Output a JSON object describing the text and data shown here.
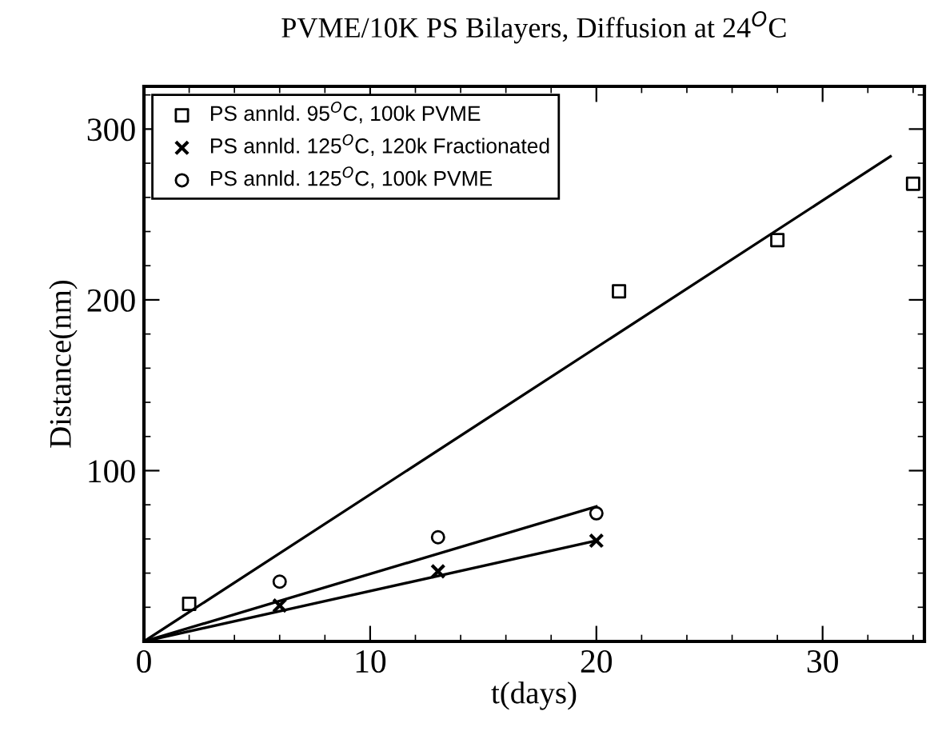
{
  "chart_data": {
    "type": "scatter",
    "title": "PVME/10K PS Bilayers, Diffusion at 24$^{O}$C",
    "xlabel": "t(days)",
    "ylabel": "Distance(nm)",
    "xlim": [
      0,
      34.5
    ],
    "ylim": [
      0,
      325
    ],
    "xticks": [
      0,
      {
        "value": 2,
        "label": null
      },
      {
        "value": 4,
        "label": null
      },
      {
        "value": 6,
        "label": null
      },
      {
        "value": 8,
        "label": null
      },
      10,
      {
        "value": 12,
        "label": null
      },
      {
        "value": 14,
        "label": null
      },
      {
        "value": 16,
        "label": null
      },
      {
        "value": 18,
        "label": null
      },
      20,
      {
        "value": 22,
        "label": null
      },
      {
        "value": 24,
        "label": null
      },
      {
        "value": 26,
        "label": null
      },
      {
        "value": 28,
        "label": null
      },
      30,
      {
        "value": 32,
        "label": null
      },
      {
        "value": 34,
        "label": null
      }
    ],
    "yticks": [
      {
        "value": 20,
        "label": null
      },
      {
        "value": 40,
        "label": null
      },
      {
        "value": 60,
        "label": null
      },
      {
        "value": 80,
        "label": null
      },
      100,
      {
        "value": 120,
        "label": null
      },
      {
        "value": 140,
        "label": null
      },
      {
        "value": 160,
        "label": null
      },
      {
        "value": 180,
        "label": null
      },
      200,
      {
        "value": 220,
        "label": null
      },
      {
        "value": 240,
        "label": null
      },
      {
        "value": 260,
        "label": null
      },
      {
        "value": 280,
        "label": null
      },
      300,
      {
        "value": 320,
        "label": null
      }
    ],
    "grid": false,
    "legend": "top left",
    "series": [
      {
        "name": "PS annld. 95$^{O}$C, 100k PVME",
        "marker": "square",
        "color": "#000000",
        "x": [
          2,
          21,
          28,
          34
        ],
        "values": [
          22,
          205,
          235,
          268
        ]
      },
      {
        "name": "PS annld. 125$^{O}$C, 120k Fractionated",
        "marker": "cross",
        "color": "#000000",
        "x": [
          6,
          13,
          20
        ],
        "values": [
          21,
          41,
          59
        ]
      },
      {
        "name": "PS annld. 125$^{O}$C, 100k PVME",
        "marker": "circle",
        "color": "#000000",
        "x": [
          6,
          13,
          20
        ],
        "values": [
          35,
          61,
          75
        ]
      },
      {
        "type": "line",
        "marker": "none",
        "color": "#000000",
        "x": [
          0,
          33
        ],
        "values": [
          0,
          284
        ]
      },
      {
        "type": "line",
        "marker": "none",
        "color": "#000000",
        "x": [
          0,
          20
        ],
        "values": [
          0,
          59
        ]
      },
      {
        "type": "line",
        "marker": "none",
        "color": "#000000",
        "x": [
          0,
          20
        ],
        "values": [
          0,
          79
        ]
      }
    ]
  }
}
